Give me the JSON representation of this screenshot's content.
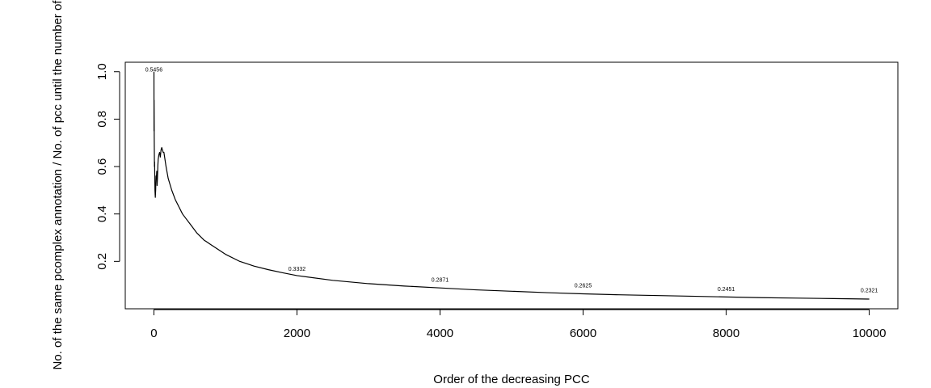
{
  "chart_data": {
    "type": "line",
    "title": "",
    "xlabel": "Order of the decreasing PCC",
    "ylabel": "No. of the same pcomplex annotation / No. of pcc until the number of",
    "xlim": [
      -400,
      10400
    ],
    "ylim": [
      0.0,
      1.04
    ],
    "x_ticks": [
      0,
      2000,
      4000,
      6000,
      8000,
      10000
    ],
    "x_tick_labels": [
      "0",
      "2000",
      "4000",
      "6000",
      "8000",
      "10000"
    ],
    "y_ticks": [
      0.2,
      0.4,
      0.6,
      0.8,
      1.0
    ],
    "y_tick_labels": [
      "0.2",
      "0.4",
      "0.6",
      "0.8",
      "1.0"
    ],
    "grid": false,
    "series": [
      {
        "x": [
          1,
          2,
          3,
          5,
          8,
          10,
          15,
          20,
          25,
          30,
          35,
          40,
          45,
          50,
          55,
          60,
          70,
          80,
          90,
          100,
          110,
          120,
          130,
          140,
          150,
          170,
          200,
          250,
          300,
          350,
          400,
          450,
          500,
          600,
          700,
          800,
          1000,
          1200,
          1400,
          1600,
          1800,
          2000,
          2500,
          3000,
          3500,
          4000,
          4500,
          5000,
          5500,
          6000,
          6500,
          7000,
          7500,
          8000,
          8500,
          9000,
          9500,
          10000
        ],
        "y": [
          1.0,
          0.75,
          0.88,
          0.72,
          0.6,
          0.62,
          0.5,
          0.47,
          0.5,
          0.56,
          0.55,
          0.58,
          0.52,
          0.55,
          0.6,
          0.63,
          0.65,
          0.66,
          0.64,
          0.67,
          0.68,
          0.67,
          0.66,
          0.66,
          0.64,
          0.6,
          0.55,
          0.5,
          0.46,
          0.43,
          0.4,
          0.38,
          0.36,
          0.32,
          0.29,
          0.27,
          0.23,
          0.2,
          0.18,
          0.165,
          0.152,
          0.14,
          0.12,
          0.106,
          0.096,
          0.088,
          0.08,
          0.074,
          0.068,
          0.063,
          0.059,
          0.056,
          0.053,
          0.05,
          0.047,
          0.045,
          0.043,
          0.041
        ]
      }
    ],
    "annotations": [
      {
        "x": 0,
        "y": 1.0,
        "text": "0.5456"
      },
      {
        "x": 2000,
        "y": 0.16,
        "text": "0.3332"
      },
      {
        "x": 4000,
        "y": 0.115,
        "text": "0.2871"
      },
      {
        "x": 6000,
        "y": 0.09,
        "text": "0.2625"
      },
      {
        "x": 8000,
        "y": 0.075,
        "text": "0.2451"
      },
      {
        "x": 10000,
        "y": 0.07,
        "text": "0.2321"
      }
    ]
  }
}
